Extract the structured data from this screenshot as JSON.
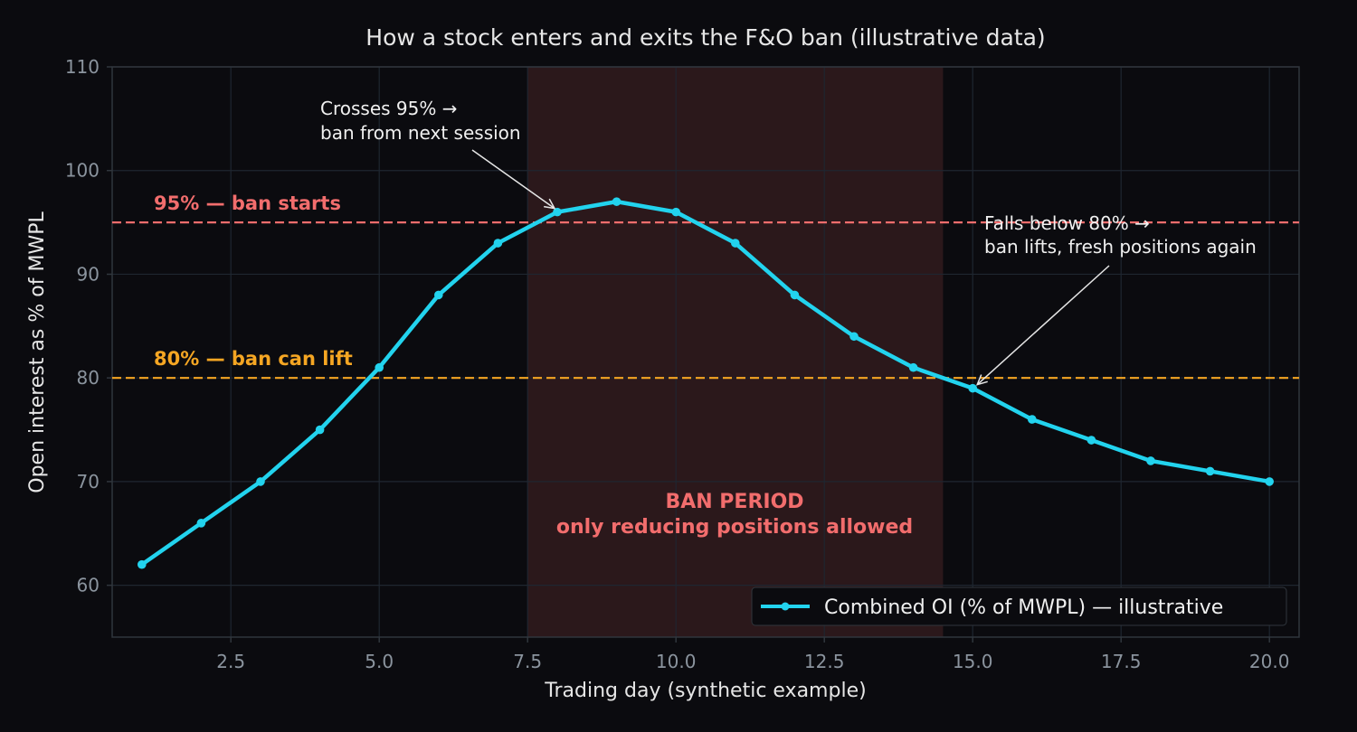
{
  "chart_data": {
    "type": "line",
    "title": "How a stock enters and exits the F&O ban (illustrative data)",
    "xlabel": "Trading day (synthetic example)",
    "ylabel": "Open interest as % of MWPL",
    "xlim": [
      0.5,
      20.5
    ],
    "ylim": [
      55,
      110
    ],
    "xticks": [
      2.5,
      5.0,
      7.5,
      10.0,
      12.5,
      15.0,
      17.5,
      20.0
    ],
    "xtick_labels": [
      "2.5",
      "5.0",
      "7.5",
      "10.0",
      "12.5",
      "15.0",
      "17.5",
      "20.0"
    ],
    "yticks": [
      60,
      70,
      80,
      90,
      100,
      110
    ],
    "ytick_labels": [
      "60",
      "70",
      "80",
      "90",
      "100",
      "110"
    ],
    "grid": true,
    "series": [
      {
        "name": "Combined OI (% of MWPL) — illustrative",
        "color": "#22d3ee",
        "x": [
          1,
          2,
          3,
          4,
          5,
          6,
          7,
          8,
          9,
          10,
          11,
          12,
          13,
          14,
          15,
          16,
          17,
          18,
          19,
          20
        ],
        "y": [
          62,
          66,
          70,
          75,
          81,
          88,
          93,
          96,
          97,
          96,
          93,
          88,
          84,
          81,
          79,
          76,
          74,
          72,
          71,
          70
        ]
      }
    ],
    "reference_lines": [
      {
        "y": 95,
        "label": "95% — ban starts",
        "color": "#f26d6d"
      },
      {
        "y": 80,
        "label": "80% — ban can lift",
        "color": "#f5a623"
      }
    ],
    "shaded_region": {
      "x_start": 7.5,
      "x_end": 14.5,
      "label_line1": "BAN PERIOD",
      "label_line2": "only reducing positions allowed",
      "color": "#f26d6d"
    },
    "annotations": [
      {
        "line1": "Crosses 95% →",
        "line2": "ban from next session",
        "target_x": 8,
        "target_y": 96
      },
      {
        "line1": "Falls below 80% →",
        "line2": "ban lifts, fresh positions again",
        "target_x": 15,
        "target_y": 79
      }
    ],
    "legend": {
      "position": "bottom-right"
    },
    "colors": {
      "background": "#0b0b0f",
      "axis": "#30363d",
      "grid": "#1f2630",
      "tick": "#8b949e"
    }
  }
}
